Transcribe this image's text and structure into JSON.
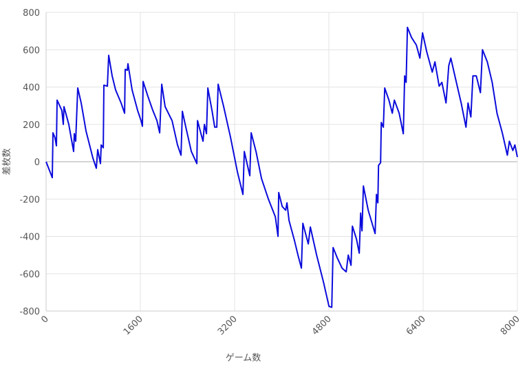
{
  "chart_data": {
    "type": "line",
    "x_label": "ゲーム数",
    "y_label": "差枚数",
    "color": "#0a0adc",
    "xlim": [
      0,
      8000
    ],
    "xticks": [
      0,
      1600,
      3200,
      4800,
      6400,
      8000
    ],
    "ylim": [
      -800,
      800
    ],
    "yticks": [
      -800,
      -600,
      -400,
      -200,
      0,
      200,
      400,
      600,
      800
    ],
    "grid": true,
    "x": [
      0,
      105,
      117,
      150,
      175,
      187,
      268,
      292,
      304,
      385,
      467,
      479,
      502,
      537,
      596,
      677,
      794,
      853,
      876,
      923,
      935,
      970,
      981,
      1040,
      1063,
      1121,
      1180,
      1273,
      1332,
      1343,
      1378,
      1390,
      1460,
      1553,
      1612,
      1635,
      1647,
      1729,
      1811,
      1881,
      1928,
      1963,
      2021,
      2138,
      2231,
      2290,
      2313,
      2372,
      2465,
      2559,
      2570,
      2629,
      2664,
      2687,
      2722,
      2746,
      2816,
      2862,
      2897,
      2921,
      3014,
      3131,
      3248,
      3341,
      3365,
      3458,
      3481,
      3563,
      3657,
      3774,
      3891,
      3937,
      3949,
      4008,
      4066,
      4089,
      4124,
      4218,
      4276,
      4334,
      4358,
      4451,
      4486,
      4592,
      4709,
      4802,
      4849,
      4872,
      4942,
      5024,
      5094,
      5129,
      5176,
      5199,
      5269,
      5316,
      5339,
      5363,
      5386,
      5468,
      5585,
      5608,
      5632,
      5643,
      5678,
      5690,
      5725,
      5748,
      5819,
      5877,
      5912,
      5994,
      6064,
      6087,
      6111,
      6134,
      6204,
      6286,
      6345,
      6391,
      6461,
      6555,
      6601,
      6672,
      6719,
      6789,
      6836,
      6871,
      6953,
      7046,
      7128,
      7163,
      7210,
      7245,
      7303,
      7373,
      7408,
      7490,
      7572,
      7654,
      7748,
      7829,
      7864,
      7923,
      7958,
      8000
    ],
    "values": [
      0,
      -85,
      155,
      130,
      85,
      330,
      275,
      200,
      295,
      200,
      55,
      150,
      110,
      395,
      315,
      165,
      20,
      -35,
      65,
      -10,
      90,
      75,
      410,
      405,
      570,
      460,
      385,
      315,
      260,
      495,
      490,
      525,
      385,
      275,
      220,
      190,
      430,
      350,
      275,
      220,
      155,
      415,
      295,
      220,
      90,
      35,
      270,
      185,
      55,
      -10,
      220,
      150,
      110,
      200,
      150,
      395,
      275,
      185,
      185,
      415,
      295,
      130,
      -55,
      -175,
      55,
      -75,
      155,
      55,
      -90,
      -200,
      -295,
      -400,
      -165,
      -240,
      -260,
      -220,
      -315,
      -425,
      -500,
      -570,
      -330,
      -440,
      -350,
      -500,
      -645,
      -775,
      -780,
      -460,
      -515,
      -570,
      -590,
      -500,
      -555,
      -345,
      -415,
      -490,
      -275,
      -370,
      -130,
      -260,
      -385,
      -175,
      -220,
      -20,
      -5,
      210,
      185,
      395,
      330,
      260,
      330,
      260,
      150,
      460,
      425,
      720,
      665,
      625,
      555,
      690,
      590,
      480,
      535,
      405,
      425,
      315,
      515,
      555,
      440,
      315,
      185,
      315,
      240,
      460,
      460,
      370,
      600,
      535,
      425,
      260,
      150,
      35,
      110,
      60,
      90,
      25
    ]
  }
}
